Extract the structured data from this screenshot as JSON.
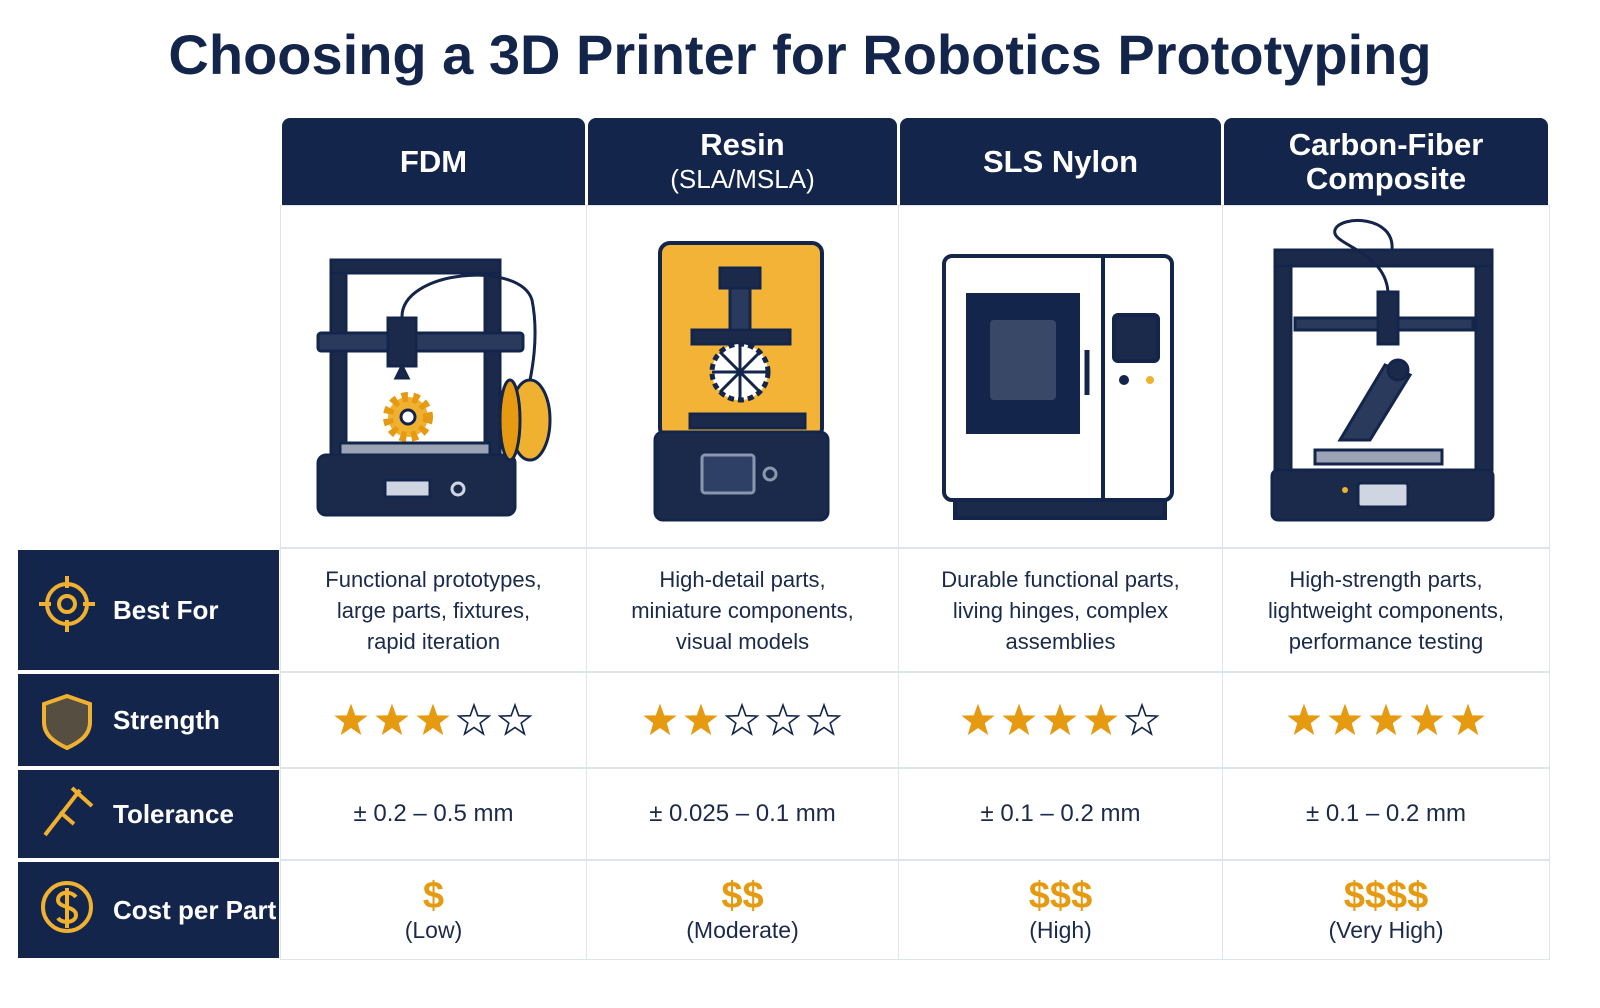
{
  "title": "Choosing a 3D Printer for Robotics Prototyping",
  "columns": [
    [
      "FDM"
    ],
    [
      "Resin",
      "(SLA/MSLA)"
    ],
    [
      "SLS Nylon"
    ],
    [
      "Carbon-Fiber",
      "Composite"
    ]
  ],
  "rows": {
    "best_for": {
      "label": "Best For",
      "cells": [
        [
          "Functional prototypes,",
          "large parts, fixtures,",
          "rapid iteration"
        ],
        [
          "High-detail parts,",
          "miniature components,",
          "visual models"
        ],
        [
          "Durable functional parts,",
          "living hinges, complex",
          "assemblies"
        ],
        [
          "High-strength parts,",
          "lightweight components,",
          "performance testing"
        ]
      ]
    },
    "strength": {
      "label": "Strength",
      "ratings": [
        3,
        2,
        4,
        5
      ],
      "max": 5
    },
    "tolerance": {
      "label": "Tolerance",
      "cells": [
        "± 0.2 – 0.5 mm",
        "± 0.025 – 0.1 mm",
        "± 0.1 – 0.2 mm",
        "± 0.1 – 0.2 mm"
      ]
    },
    "cost": {
      "label": "Cost per Part",
      "symbols": [
        "$",
        "$$",
        "$$$",
        "$$$$"
      ],
      "levels": [
        "(Low)",
        "(Moderate)",
        "(High)",
        "(Very High)"
      ]
    }
  }
}
